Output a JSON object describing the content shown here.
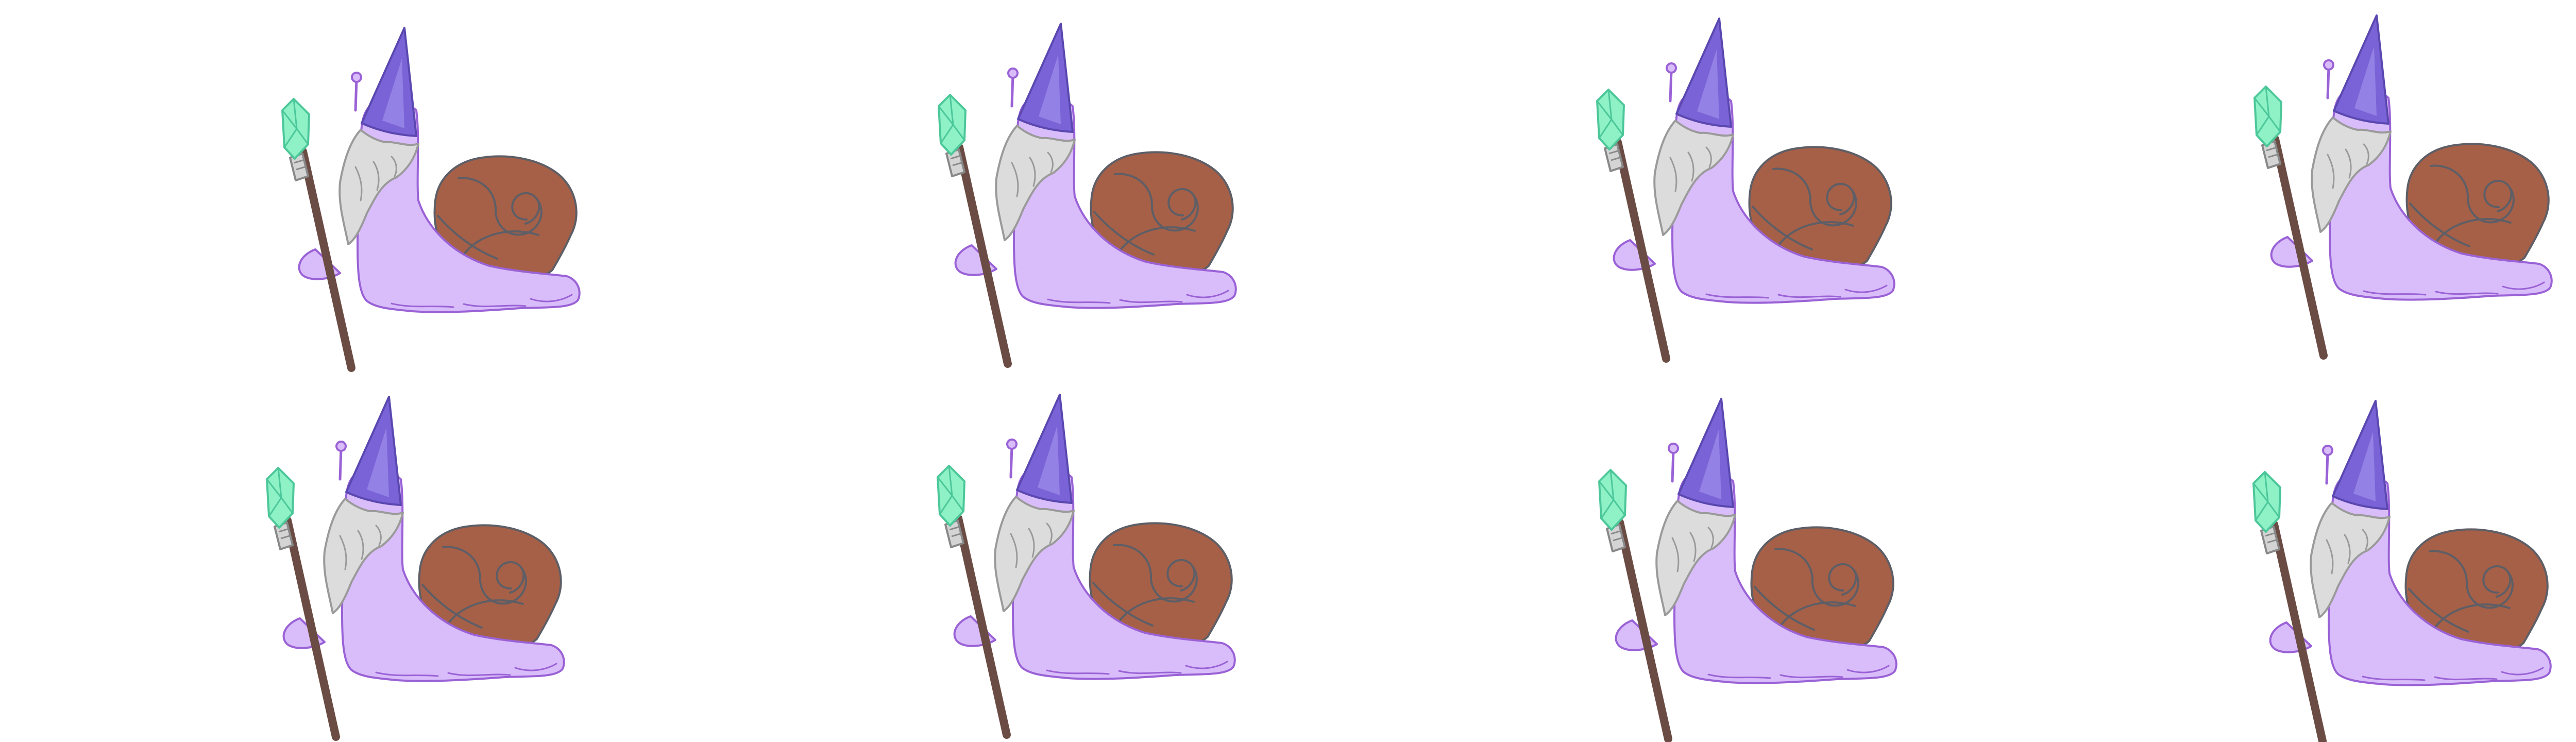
{
  "sprite_sheet": {
    "character": "snail-wizard",
    "rows": 2,
    "columns": 4,
    "frame_count": 8,
    "background_color": "#ffffff",
    "colors": {
      "body": "#d9bdfa",
      "body_outline": "#9a62d6",
      "shell": "#a66047",
      "shell_outline": "#5e5e66",
      "hat": "#7a63d6",
      "hat_highlight": "#9b88e8",
      "beard": "#dcdcdc",
      "beard_outline": "#9a9a9a",
      "staff": "#6b4c44",
      "crystal": "#8ef2c6",
      "crystal_outline": "#4cc79a",
      "ferrule": "#d4d4d4"
    },
    "frames": [
      {
        "index": 1,
        "row": 1,
        "col": 1
      },
      {
        "index": 2,
        "row": 1,
        "col": 2
      },
      {
        "index": 3,
        "row": 1,
        "col": 3
      },
      {
        "index": 4,
        "row": 1,
        "col": 4
      },
      {
        "index": 5,
        "row": 2,
        "col": 1
      },
      {
        "index": 6,
        "row": 2,
        "col": 2
      },
      {
        "index": 7,
        "row": 2,
        "col": 3
      },
      {
        "index": 8,
        "row": 2,
        "col": 4
      }
    ]
  }
}
